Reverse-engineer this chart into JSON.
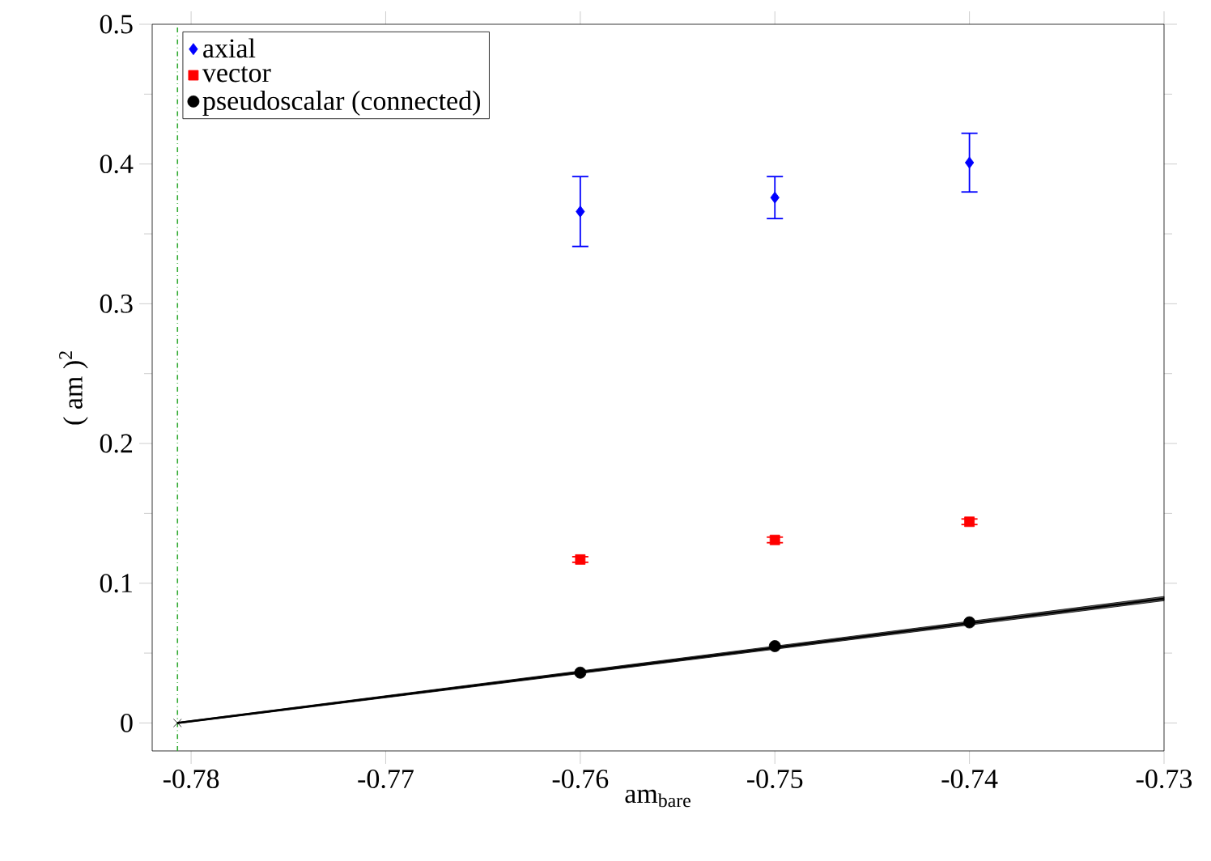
{
  "chart_data": {
    "type": "scatter",
    "xlabel": "am$_{bare}$",
    "ylabel": "( am )$^{2}$",
    "xlim": [
      -0.782,
      -0.73
    ],
    "ylim": [
      -0.02,
      0.5
    ],
    "xticks": [
      -0.78,
      -0.77,
      -0.76,
      -0.75,
      -0.74,
      -0.73
    ],
    "yticks": [
      0,
      0.1,
      0.2,
      0.3,
      0.4,
      0.5
    ],
    "grid": false,
    "legend": "top left",
    "ref_lines": [
      {
        "axis": "x",
        "value": -0.7807,
        "color": "#33aa33",
        "line_style": "dashdot"
      }
    ],
    "series": [
      {
        "name": "axial",
        "color": "#0000ff",
        "marker": "diamond",
        "x": [
          -0.76,
          -0.75,
          -0.74
        ],
        "values": [
          0.366,
          0.376,
          0.401
        ],
        "errors": [
          [
            0.341,
            0.391
          ],
          [
            0.361,
            0.391
          ],
          [
            0.38,
            0.422
          ]
        ]
      },
      {
        "name": "vector",
        "color": "#ff0000",
        "marker": "square",
        "x": [
          -0.76,
          -0.75,
          -0.74
        ],
        "values": [
          0.117,
          0.131,
          0.144
        ],
        "errors": [
          0.002,
          0.002,
          0.002
        ]
      },
      {
        "name": "pseudoscalar (connected)",
        "color": "#000000",
        "marker": "circle",
        "x": [
          -0.76,
          -0.75,
          -0.74
        ],
        "values": [
          0.036,
          0.055,
          0.072
        ]
      },
      {
        "type": "line",
        "color": "#000000",
        "marker": "none",
        "x": [
          -0.7807,
          -0.73
        ],
        "values": [
          0,
          0.089
        ],
        "lower": [
          -0.0005,
          0.0875
        ],
        "upper": [
          0.0005,
          0.0905
        ]
      },
      {
        "color": "#000000",
        "marker": "cross",
        "x": [
          -0.7807
        ],
        "values": [
          0
        ]
      }
    ]
  }
}
